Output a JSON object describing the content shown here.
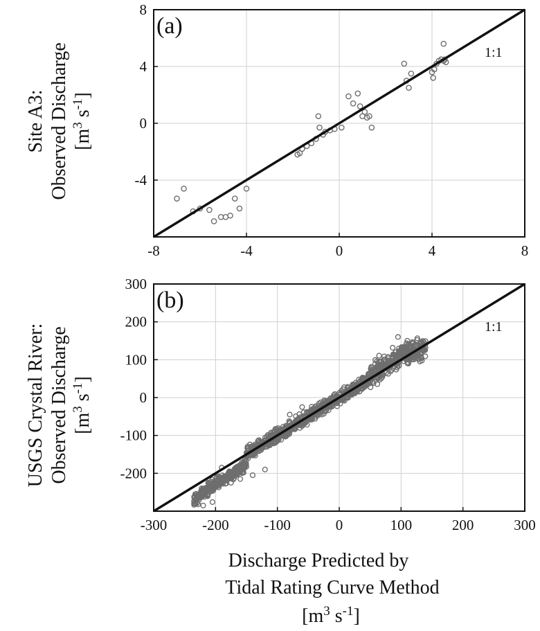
{
  "chart_data": [
    {
      "type": "scatter",
      "panel_label": "(a)",
      "ylabel_lines": [
        "Site A3:",
        "Observed Discharge",
        "[m3 s-1]"
      ],
      "xlim": [
        -8,
        8
      ],
      "ylim": [
        -8,
        8
      ],
      "xticks": [
        -8,
        -4,
        0,
        4,
        8
      ],
      "yticks": [
        -4,
        0,
        4,
        8
      ],
      "xtick_labels": [
        "-8",
        "-4",
        "0",
        "4",
        "8"
      ],
      "ytick_labels": [
        "-4",
        "0",
        "4",
        "8"
      ],
      "grid": true,
      "reference_line": {
        "label": "1:1",
        "slope": 1,
        "intercept": 0
      },
      "colors": {
        "points": "#6e6e6e",
        "line": "#111111"
      },
      "points": [
        [
          -7.0,
          -5.3
        ],
        [
          -6.7,
          -4.6
        ],
        [
          -6.3,
          -6.2
        ],
        [
          -6.0,
          -6.0
        ],
        [
          -5.6,
          -6.1
        ],
        [
          -5.4,
          -6.9
        ],
        [
          -5.1,
          -6.6
        ],
        [
          -4.9,
          -6.6
        ],
        [
          -4.7,
          -6.5
        ],
        [
          -4.5,
          -5.3
        ],
        [
          -4.3,
          -6.0
        ],
        [
          -4.0,
          -4.6
        ],
        [
          -1.8,
          -2.2
        ],
        [
          -1.7,
          -2.1
        ],
        [
          -1.6,
          -1.8
        ],
        [
          -1.4,
          -1.6
        ],
        [
          -1.2,
          -1.4
        ],
        [
          -1.0,
          -1.1
        ],
        [
          -0.9,
          0.5
        ],
        [
          -0.85,
          -0.3
        ],
        [
          -0.7,
          -0.8
        ],
        [
          -0.6,
          -0.6
        ],
        [
          -0.4,
          -0.5
        ],
        [
          -0.2,
          -0.4
        ],
        [
          0.1,
          -0.3
        ],
        [
          0.4,
          1.9
        ],
        [
          0.6,
          1.4
        ],
        [
          0.8,
          2.1
        ],
        [
          0.9,
          1.2
        ],
        [
          1.0,
          0.5
        ],
        [
          1.1,
          0.8
        ],
        [
          1.2,
          0.4
        ],
        [
          1.3,
          0.5
        ],
        [
          1.4,
          -0.3
        ],
        [
          2.8,
          4.2
        ],
        [
          2.9,
          3.0
        ],
        [
          3.0,
          2.5
        ],
        [
          3.1,
          3.5
        ],
        [
          4.0,
          3.6
        ],
        [
          4.05,
          3.2
        ],
        [
          4.1,
          3.8
        ],
        [
          4.2,
          4.2
        ],
        [
          4.3,
          4.4
        ],
        [
          4.4,
          4.5
        ],
        [
          4.5,
          4.4
        ],
        [
          4.5,
          5.6
        ],
        [
          4.6,
          4.3
        ],
        [
          4.55,
          4.5
        ]
      ]
    },
    {
      "type": "scatter",
      "panel_label": "(b)",
      "ylabel_lines": [
        "USGS Crystal River:",
        "Observed Discharge",
        "[m3 s-1]"
      ],
      "xlabel_lines": [
        "Discharge Predicted by",
        "Tidal Rating Curve Method",
        "[m3 s-1]"
      ],
      "xlim": [
        -300,
        300
      ],
      "ylim": [
        -300,
        300
      ],
      "xticks": [
        -300,
        -200,
        -100,
        0,
        100,
        200,
        300
      ],
      "yticks": [
        -200,
        -100,
        0,
        100,
        200,
        300
      ],
      "xtick_labels": [
        "-300",
        "-200",
        "-100",
        "0",
        "100",
        "200",
        "300"
      ],
      "ytick_labels": [
        "-200",
        "-100",
        "0",
        "100",
        "200",
        "300"
      ],
      "grid": true,
      "reference_line": {
        "label": "1:1",
        "slope": 1,
        "intercept": 0
      },
      "colors": {
        "points": "#6e6e6e",
        "line": "#111111"
      },
      "point_cloud": {
        "approximate_count": 1400,
        "x_range": [
          -235,
          140
        ],
        "segments": [
          {
            "x": [
              -235,
              -150
            ],
            "slope": 1.1,
            "intercept": -10,
            "spread": 12
          },
          {
            "x": [
              -150,
              50
            ],
            "slope": 1.0,
            "intercept": 0,
            "spread": 14
          },
          {
            "x": [
              50,
              100
            ],
            "slope": 1.05,
            "intercept": 5,
            "spread": 22
          },
          {
            "x": [
              100,
              140
            ],
            "slope": 0.2,
            "intercept": 100,
            "spread": 22
          }
        ]
      },
      "points": [
        [
          -233,
          -280
        ],
        [
          -228,
          -282
        ],
        [
          -224,
          -258
        ],
        [
          -220,
          -285
        ],
        [
          -212,
          -225
        ],
        [
          -205,
          -276
        ],
        [
          -198,
          -210
        ],
        [
          -190,
          -185
        ],
        [
          -175,
          -225
        ],
        [
          -160,
          -215
        ],
        [
          -140,
          -205
        ],
        [
          -120,
          -190
        ],
        [
          -80,
          -45
        ],
        [
          -60,
          -25
        ],
        [
          95,
          160
        ],
        [
          110,
          150
        ],
        [
          90,
          95
        ],
        [
          120,
          145
        ]
      ]
    }
  ]
}
